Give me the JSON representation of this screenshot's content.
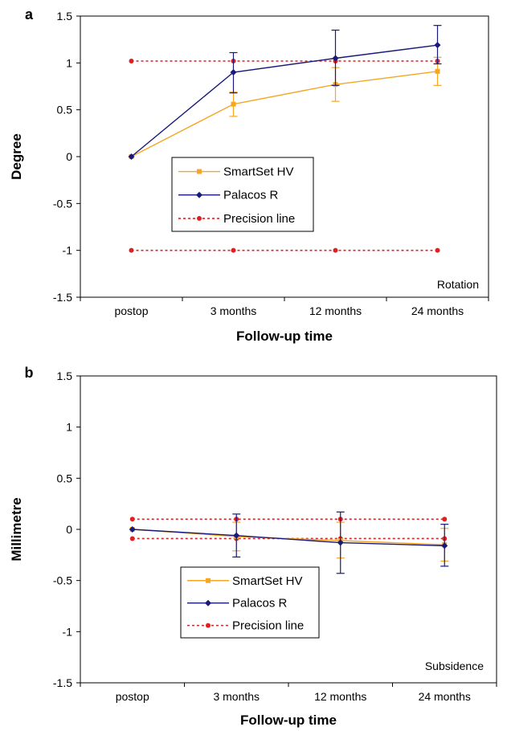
{
  "chart_data": [
    {
      "panel": "a",
      "type": "line",
      "categories": [
        "postop",
        "3 months",
        "12 months",
        "24 months"
      ],
      "xlabel": "Follow-up time",
      "ylabel": "Degree",
      "ylim": [
        -1.5,
        1.5
      ],
      "yticks": [
        "1.5",
        "1",
        "0.5",
        "0",
        "-0.5",
        "-1",
        "-1.5"
      ],
      "annotation": "Rotation",
      "series": [
        {
          "name": "SmartSet HV",
          "color": "#f5a623",
          "marker": "square",
          "values": [
            0,
            0.56,
            0.77,
            0.91
          ],
          "err_low": [
            0,
            0.43,
            0.59,
            0.76
          ],
          "err_high": [
            0,
            0.69,
            0.95,
            1.06
          ]
        },
        {
          "name": "Palacos R",
          "color": "#1a1a7a",
          "marker": "diamond",
          "values": [
            0,
            0.9,
            1.05,
            1.19
          ],
          "err_low": [
            0,
            0.68,
            0.76,
            0.99
          ],
          "err_high": [
            0,
            1.11,
            1.35,
            1.4
          ]
        },
        {
          "name": "Precision line",
          "color": "#e02020",
          "marker": "circle",
          "dashed": true,
          "values": [
            1.02,
            1.02,
            1.02,
            1.02
          ]
        },
        {
          "name": "Precision line",
          "color": "#e02020",
          "marker": "circle",
          "dashed": true,
          "legend": false,
          "values": [
            -1.0,
            -1.0,
            -1.0,
            -1.0
          ]
        }
      ],
      "legend_position": "center-left"
    },
    {
      "panel": "b",
      "type": "line",
      "categories": [
        "postop",
        "3 months",
        "12 months",
        "24 months"
      ],
      "xlabel": "Follow-up time",
      "ylabel": "Millimetre",
      "ylim": [
        -1.5,
        1.5
      ],
      "yticks": [
        "1.5",
        "1",
        "0.5",
        "0",
        "-0.5",
        "-1",
        "-1.5"
      ],
      "annotation": "Subsidence",
      "series": [
        {
          "name": "SmartSet HV",
          "color": "#f5a623",
          "marker": "square",
          "values": [
            0,
            -0.07,
            -0.11,
            -0.15
          ],
          "err_low": [
            0,
            -0.21,
            -0.28,
            -0.31
          ],
          "err_high": [
            0,
            0.07,
            0.07,
            0.01
          ]
        },
        {
          "name": "Palacos R",
          "color": "#1a1a7a",
          "marker": "diamond",
          "values": [
            0,
            -0.06,
            -0.13,
            -0.16
          ],
          "err_low": [
            0,
            -0.27,
            -0.43,
            -0.36
          ],
          "err_high": [
            0,
            0.15,
            0.17,
            0.05
          ]
        },
        {
          "name": "Precision line",
          "color": "#e02020",
          "marker": "circle",
          "dashed": true,
          "values": [
            0.1,
            0.1,
            0.1,
            0.1
          ]
        },
        {
          "name": "Precision line",
          "color": "#e02020",
          "marker": "circle",
          "dashed": true,
          "legend": false,
          "values": [
            -0.09,
            -0.09,
            -0.09,
            -0.09
          ]
        }
      ],
      "legend_position": "lower-left"
    }
  ]
}
